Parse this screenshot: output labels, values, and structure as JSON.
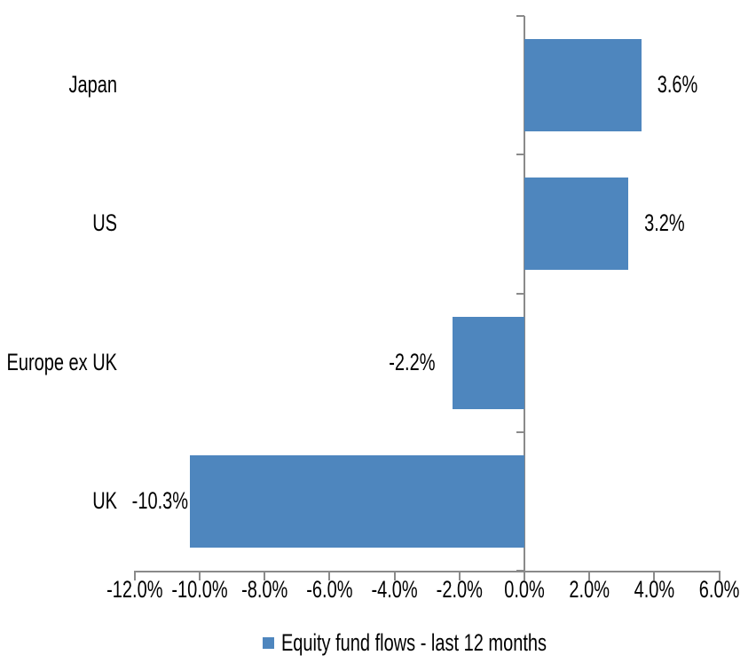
{
  "chart_data": {
    "type": "bar",
    "orientation": "horizontal",
    "title": "",
    "categories": [
      "Japan",
      "US",
      "Europe ex UK",
      "UK"
    ],
    "series": [
      {
        "name": "Equity fund flows - last 12 months",
        "values": [
          3.6,
          3.2,
          -2.2,
          -10.3
        ],
        "data_labels": [
          "3.6%",
          "3.2%",
          "-2.2%",
          "-10.3%"
        ]
      }
    ],
    "xlabel": "",
    "ylabel": "",
    "xlim": [
      -12,
      6
    ],
    "x_tick_step": 2,
    "x_tick_labels": [
      "-12.0%",
      "-10.0%",
      "-8.0%",
      "-6.0%",
      "-4.0%",
      "-2.0%",
      "0.0%",
      "2.0%",
      "4.0%",
      "6.0%"
    ],
    "grid": false,
    "legend": "Equity fund flows - last 12 months",
    "legend_position": "bottom-center",
    "data_label_position": "outside-end",
    "colors": {
      "bar": "#4E86BE",
      "axis": "#8A8A8A",
      "text": "#000000",
      "background": "#FFFFFF"
    }
  }
}
